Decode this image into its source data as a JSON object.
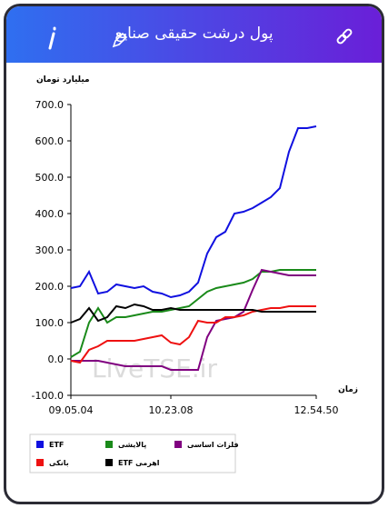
{
  "header": {
    "title": "پول درشت حقیقی صنایع"
  },
  "chart_data": {
    "type": "line",
    "y_label": "میلیارد تومان",
    "x_label": "زمان",
    "watermark": "LiveTSE.ir",
    "categories": [
      "09.05.04",
      null,
      null,
      null,
      null,
      null,
      null,
      null,
      null,
      null,
      null,
      "10.23.08",
      null,
      null,
      null,
      null,
      null,
      null,
      null,
      null,
      null,
      null,
      null,
      null,
      null,
      null,
      null,
      "12.54.50"
    ],
    "ylim": [
      -100,
      700
    ],
    "yticks": [
      {
        "value": -100,
        "label": "-100.0"
      },
      {
        "value": 0,
        "label": "0.0"
      },
      {
        "value": 100,
        "label": "100.0"
      },
      {
        "value": 200,
        "label": "200.0"
      },
      {
        "value": 300,
        "label": "300.0"
      },
      {
        "value": 400,
        "label": "400.0"
      },
      {
        "value": 500,
        "label": "500.0"
      },
      {
        "value": 600,
        "label": "600.0"
      },
      {
        "value": 700,
        "label": "700.0"
      }
    ],
    "series": [
      {
        "name": "ETF",
        "color": "#1010e0",
        "values": [
          195,
          200,
          240,
          180,
          185,
          205,
          200,
          195,
          200,
          185,
          180,
          170,
          175,
          185,
          210,
          290,
          335,
          350,
          400,
          405,
          415,
          430,
          445,
          470,
          570,
          635,
          635,
          640
        ]
      },
      {
        "name": "پالایشی",
        "color": "#1a8a1a",
        "values": [
          5,
          20,
          100,
          140,
          100,
          115,
          115,
          120,
          125,
          130,
          130,
          135,
          140,
          145,
          165,
          185,
          195,
          200,
          205,
          210,
          220,
          240,
          240,
          245,
          245,
          245,
          245,
          245
        ]
      },
      {
        "name": "فلزات اساسی",
        "color": "#800080",
        "values": [
          -5,
          -5,
          -5,
          -5,
          -10,
          -15,
          -20,
          -20,
          -20,
          -20,
          -20,
          -30,
          -30,
          -30,
          -30,
          60,
          105,
          110,
          115,
          130,
          190,
          245,
          240,
          235,
          230,
          230,
          230,
          230
        ]
      },
      {
        "name": "بانکی",
        "color": "#ee1111",
        "values": [
          -5,
          -10,
          25,
          35,
          50,
          50,
          50,
          50,
          55,
          60,
          65,
          45,
          40,
          60,
          105,
          100,
          100,
          115,
          115,
          120,
          130,
          135,
          140,
          140,
          145,
          145,
          145,
          145
        ]
      },
      {
        "name": "ETF اهرمی",
        "color": "#000000",
        "values": [
          100,
          110,
          140,
          105,
          115,
          145,
          140,
          150,
          145,
          135,
          135,
          140,
          135,
          135,
          135,
          135,
          135,
          135,
          135,
          135,
          135,
          130,
          130,
          130,
          130,
          130,
          130,
          130
        ]
      }
    ]
  }
}
